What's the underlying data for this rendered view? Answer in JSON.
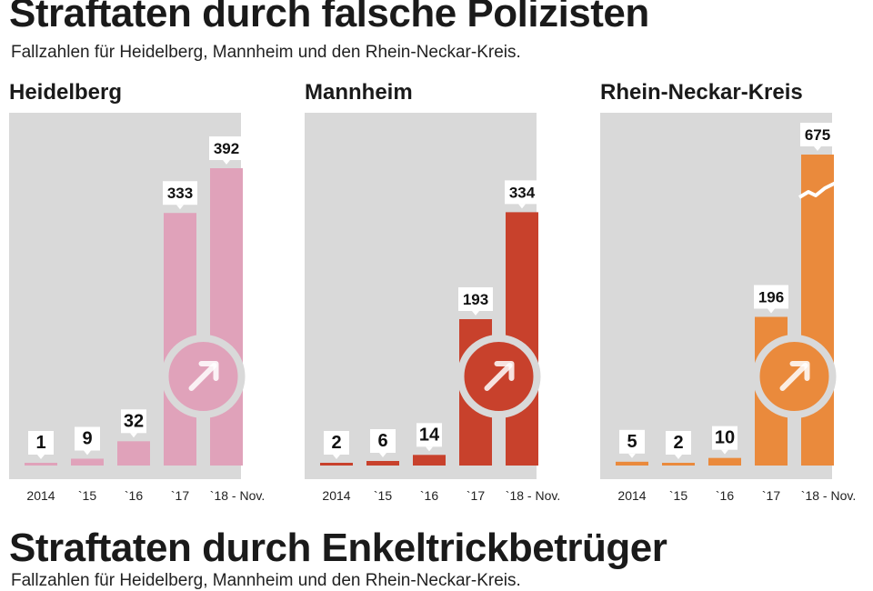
{
  "page": {
    "title": "Straftaten durch falsche Polizisten",
    "subtitle": "Fallzahlen für Heidelberg, Mannheim und den Rhein-Neckar-Kreis.",
    "next_title": "Straftaten durch Enkeltrickbetrüger",
    "next_subtitle": "Fallzahlen für Heidelberg, Mannheim und den Rhein-Neckar-Kreis."
  },
  "colors": {
    "background": "#d9d9d9",
    "heidelberg": "#e0a2ba",
    "mannheim": "#c8412c",
    "rhein_neckar": "#ea8a3c"
  },
  "chart_data": [
    {
      "type": "bar",
      "title": "Heidelberg",
      "categories": [
        "2014",
        "`15",
        "`16",
        "`17",
        "`18 - Nov."
      ],
      "values": [
        1,
        9,
        32,
        333,
        392
      ],
      "ylim": [
        0,
        410
      ],
      "trend_icon": "arrow-up-right-icon"
    },
    {
      "type": "bar",
      "title": "Mannheim",
      "categories": [
        "2014",
        "`15",
        "`16",
        "`17",
        "`18 - Nov."
      ],
      "values": [
        2,
        6,
        14,
        193,
        334
      ],
      "ylim": [
        0,
        410
      ],
      "trend_icon": "arrow-up-right-icon"
    },
    {
      "type": "bar",
      "title": "Rhein-Neckar-Kreis",
      "categories": [
        "2014",
        "`15",
        "`16",
        "`17",
        "`18 - Nov."
      ],
      "values": [
        5,
        2,
        10,
        196,
        675
      ],
      "ylim": [
        0,
        410
      ],
      "axis_break": true,
      "trend_icon": "arrow-up-right-icon"
    }
  ]
}
